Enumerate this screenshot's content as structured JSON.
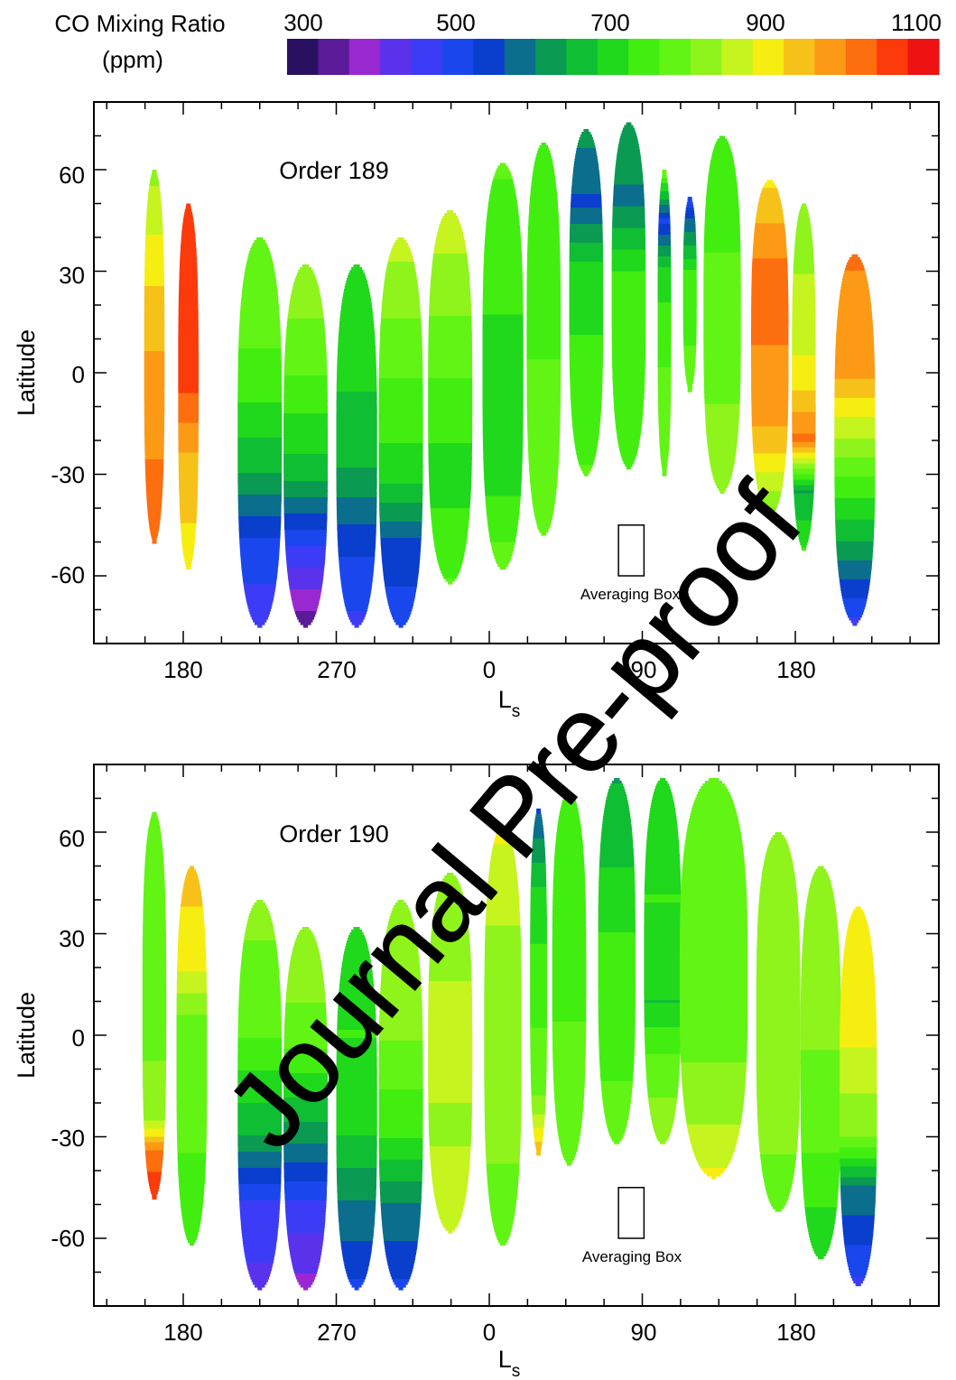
{
  "watermark": "Journal Pre-proof",
  "colorbar": {
    "title_line1": "CO Mixing Ratio",
    "title_line2": "(ppm)",
    "ticks": [
      "300",
      "500",
      "700",
      "900",
      "1100"
    ],
    "range": [
      300,
      1100
    ],
    "colors": [
      "#2a1060",
      "#5a1a9a",
      "#9a28d0",
      "#5a32ec",
      "#3c3cf6",
      "#1a46ee",
      "#0a3ecc",
      "#0a6e8c",
      "#0a9a52",
      "#10be34",
      "#20d81c",
      "#42ee10",
      "#62f414",
      "#8ef41c",
      "#c6f41e",
      "#f6ee10",
      "#f6c21a",
      "#fc9a16",
      "#fc6e0e",
      "#fc3a0a",
      "#ee1212"
    ]
  },
  "chart_data": [
    {
      "type": "heatmap",
      "panel_label": "Order 189",
      "xlabel": "L",
      "xlabel_sub": "s",
      "ylabel": "Latitude",
      "x_tick_labels": [
        "180",
        "270",
        "0",
        "90",
        "180"
      ],
      "y_tick_labels": [
        "60",
        "30",
        "0",
        "-30",
        "-60"
      ],
      "y_ticks": [
        60,
        30,
        0,
        -30,
        -60
      ],
      "ylim": [
        -80,
        80
      ],
      "xlim_ls_continuous": [
        138,
        398
      ],
      "annotation": "Averaging Box",
      "averaging_box": {
        "ls_min": 76,
        "ls_max": 91,
        "lat_min": -60,
        "lat_max": -45
      },
      "swaths": [
        {
          "ls": 163,
          "width": 12,
          "lat_min": -50,
          "lat_max": 60,
          "profile": [
            [
              60,
              820
            ],
            [
              30,
              900
            ],
            [
              0,
              960
            ],
            [
              -30,
              990
            ],
            [
              -50,
              1010
            ]
          ]
        },
        {
          "ls": 183,
          "width": 12,
          "lat_min": -58,
          "lat_max": 50,
          "profile": [
            [
              50,
              1060
            ],
            [
              20,
              1040
            ],
            [
              0,
              1050
            ],
            [
              -30,
              920
            ],
            [
              -58,
              900
            ]
          ]
        },
        {
          "ls": 225,
          "width": 26,
          "lat_min": -75,
          "lat_max": 40,
          "profile": [
            [
              40,
              790
            ],
            [
              0,
              750
            ],
            [
              -30,
              640
            ],
            [
              -50,
              520
            ],
            [
              -75,
              460
            ]
          ]
        },
        {
          "ls": 252,
          "width": 26,
          "lat_min": -75,
          "lat_max": 32,
          "profile": [
            [
              32,
              830
            ],
            [
              0,
              760
            ],
            [
              -30,
              660
            ],
            [
              -50,
              500
            ],
            [
              -75,
              350
            ]
          ]
        },
        {
          "ls": 282,
          "width": 24,
          "lat_min": -75,
          "lat_max": 32,
          "profile": [
            [
              32,
              690
            ],
            [
              0,
              690
            ],
            [
              -30,
              640
            ],
            [
              -50,
              540
            ],
            [
              -75,
              480
            ]
          ]
        },
        {
          "ls": 308,
          "width": 26,
          "lat_min": -75,
          "lat_max": 40,
          "profile": [
            [
              40,
              850
            ],
            [
              0,
              760
            ],
            [
              -30,
              700
            ],
            [
              -50,
              560
            ],
            [
              -75,
              500
            ]
          ]
        },
        {
          "ls": 337,
          "width": 26,
          "lat_min": -62,
          "lat_max": 48,
          "profile": [
            [
              48,
              860
            ],
            [
              0,
              760
            ],
            [
              -30,
              700
            ],
            [
              -62,
              760
            ]
          ]
        },
        {
          "ls": 368,
          "width": 24,
          "lat_min": -58,
          "lat_max": 62,
          "profile": [
            [
              62,
              760
            ],
            [
              30,
              740
            ],
            [
              0,
              690
            ],
            [
              -30,
              700
            ],
            [
              -58,
              780
            ]
          ]
        },
        {
          "ls": 392,
          "width": 20,
          "lat_min": -48,
          "lat_max": 68,
          "profile": [
            [
              68,
              720
            ],
            [
              30,
              740
            ],
            [
              0,
              760
            ],
            [
              -48,
              770
            ]
          ]
        },
        {
          "ls": 417,
          "width": 20,
          "lat_min": -30,
          "lat_max": 72,
          "profile": [
            [
              72,
              620
            ],
            [
              50,
              560
            ],
            [
              30,
              700
            ],
            [
              0,
              730
            ],
            [
              -30,
              760
            ]
          ]
        },
        {
          "ls": 442,
          "width": 20,
          "lat_min": -28,
          "lat_max": 74,
          "profile": [
            [
              74,
              620
            ],
            [
              50,
              600
            ],
            [
              30,
              720
            ],
            [
              0,
              740
            ],
            [
              -28,
              740
            ]
          ]
        },
        {
          "ls": 463,
          "width": 8,
          "lat_min": -30,
          "lat_max": 60,
          "profile": [
            [
              60,
              800
            ],
            [
              45,
              520
            ],
            [
              30,
              700
            ],
            [
              0,
              760
            ],
            [
              -30,
              780
            ]
          ]
        },
        {
          "ls": 478,
          "width": 8,
          "lat_min": -5,
          "lat_max": 52,
          "profile": [
            [
              52,
              500
            ],
            [
              30,
              720
            ],
            [
              -5,
              780
            ]
          ]
        },
        {
          "ls": 497,
          "width": 22,
          "lat_min": -35,
          "lat_max": 70,
          "profile": [
            [
              70,
              740
            ],
            [
              30,
              760
            ],
            [
              0,
              790
            ],
            [
              -35,
              810
            ]
          ]
        },
        {
          "ls": 525,
          "width": 22,
          "lat_min": -42,
          "lat_max": 57,
          "profile": [
            [
              57,
              900
            ],
            [
              30,
              1000
            ],
            [
              0,
              980
            ],
            [
              -20,
              940
            ],
            [
              -42,
              780
            ]
          ]
        },
        {
          "ls": 545,
          "width": 14,
          "lat_min": -52,
          "lat_max": 50,
          "profile": [
            [
              50,
              800
            ],
            [
              0,
              880
            ],
            [
              -20,
              1000
            ],
            [
              -35,
              640
            ],
            [
              -52,
              720
            ]
          ]
        },
        {
          "ls": 575,
          "width": 24,
          "lat_min": -74,
          "lat_max": 35,
          "profile": [
            [
              35,
              990
            ],
            [
              0,
              960
            ],
            [
              -30,
              760
            ],
            [
              -50,
              640
            ],
            [
              -74,
              480
            ]
          ]
        }
      ]
    },
    {
      "type": "heatmap",
      "panel_label": "Order 190",
      "xlabel": "L",
      "xlabel_sub": "s",
      "ylabel": "Latitude",
      "x_tick_labels": [
        "180",
        "270",
        "0",
        "90",
        "180"
      ],
      "y_tick_labels": [
        "60",
        "30",
        "0",
        "-30",
        "-60"
      ],
      "y_ticks": [
        60,
        30,
        0,
        -30,
        -60
      ],
      "ylim": [
        -80,
        80
      ],
      "xlim_ls_continuous": [
        138,
        398
      ],
      "annotation": "Averaging Box",
      "averaging_box": {
        "ls_min": 76,
        "ls_max": 91,
        "lat_min": -60,
        "lat_max": -45
      },
      "swaths": [
        {
          "ls": 163,
          "width": 14,
          "lat_min": -48,
          "lat_max": 66,
          "profile": [
            [
              66,
              760
            ],
            [
              30,
              760
            ],
            [
              0,
              780
            ],
            [
              -25,
              830
            ],
            [
              -35,
              1000
            ],
            [
              -48,
              1060
            ]
          ]
        },
        {
          "ls": 185,
          "width": 18,
          "lat_min": -62,
          "lat_max": 50,
          "profile": [
            [
              50,
              930
            ],
            [
              20,
              880
            ],
            [
              0,
              760
            ],
            [
              -30,
              760
            ],
            [
              -62,
              740
            ]
          ]
        },
        {
          "ls": 225,
          "width": 26,
          "lat_min": -75,
          "lat_max": 40,
          "profile": [
            [
              40,
              810
            ],
            [
              0,
              760
            ],
            [
              -30,
              640
            ],
            [
              -50,
              480
            ],
            [
              -75,
              440
            ]
          ]
        },
        {
          "ls": 252,
          "width": 26,
          "lat_min": -75,
          "lat_max": 32,
          "profile": [
            [
              32,
              830
            ],
            [
              0,
              780
            ],
            [
              -30,
              620
            ],
            [
              -50,
              480
            ],
            [
              -75,
              400
            ]
          ]
        },
        {
          "ls": 282,
          "width": 24,
          "lat_min": -75,
          "lat_max": 32,
          "profile": [
            [
              32,
              700
            ],
            [
              0,
              720
            ],
            [
              -30,
              680
            ],
            [
              -50,
              600
            ],
            [
              -75,
              520
            ]
          ]
        },
        {
          "ls": 308,
          "width": 26,
          "lat_min": -75,
          "lat_max": 40,
          "profile": [
            [
              40,
              830
            ],
            [
              0,
              800
            ],
            [
              -30,
              720
            ],
            [
              -50,
              600
            ],
            [
              -75,
              520
            ]
          ]
        },
        {
          "ls": 337,
          "width": 26,
          "lat_min": -58,
          "lat_max": 48,
          "profile": [
            [
              48,
              820
            ],
            [
              0,
              840
            ],
            [
              -30,
              830
            ],
            [
              -58,
              860
            ]
          ]
        },
        {
          "ls": 368,
          "width": 22,
          "lat_min": -62,
          "lat_max": 62,
          "profile": [
            [
              62,
              880
            ],
            [
              30,
              830
            ],
            [
              0,
              830
            ],
            [
              -30,
              800
            ],
            [
              -62,
              780
            ]
          ]
        },
        {
          "ls": 389,
          "width": 10,
          "lat_min": -35,
          "lat_max": 67,
          "profile": [
            [
              67,
              560
            ],
            [
              40,
              700
            ],
            [
              0,
              760
            ],
            [
              -20,
              800
            ],
            [
              -35,
              940
            ]
          ]
        },
        {
          "ls": 407,
          "width": 20,
          "lat_min": -38,
          "lat_max": 72,
          "profile": [
            [
              72,
              720
            ],
            [
              30,
              740
            ],
            [
              0,
              760
            ],
            [
              -38,
              780
            ]
          ]
        },
        {
          "ls": 435,
          "width": 22,
          "lat_min": -32,
          "lat_max": 76,
          "profile": [
            [
              76,
              640
            ],
            [
              50,
              680
            ],
            [
              30,
              720
            ],
            [
              0,
              740
            ],
            [
              -32,
              780
            ]
          ]
        },
        {
          "ls": 462,
          "width": 22,
          "lat_min": -32,
          "lat_max": 76,
          "profile": [
            [
              76,
              700
            ],
            [
              40,
              720
            ],
            [
              10,
              680
            ],
            [
              -10,
              780
            ],
            [
              -32,
              820
            ]
          ]
        },
        {
          "ls": 492,
          "width": 40,
          "lat_min": -42,
          "lat_max": 76,
          "profile": [
            [
              76,
              760
            ],
            [
              40,
              760
            ],
            [
              0,
              780
            ],
            [
              -25,
              830
            ],
            [
              -42,
              880
            ]
          ]
        },
        {
          "ls": 530,
          "width": 26,
          "lat_min": -52,
          "lat_max": 60,
          "profile": [
            [
              60,
              820
            ],
            [
              30,
              820
            ],
            [
              0,
              800
            ],
            [
              -30,
              800
            ],
            [
              -52,
              780
            ]
          ]
        },
        {
          "ls": 555,
          "width": 24,
          "lat_min": -66,
          "lat_max": 50,
          "profile": [
            [
              50,
              800
            ],
            [
              0,
              800
            ],
            [
              -30,
              770
            ],
            [
              -50,
              720
            ],
            [
              -66,
              700
            ]
          ]
        },
        {
          "ls": 577,
          "width": 22,
          "lat_min": -74,
          "lat_max": 38,
          "profile": [
            [
              38,
              900
            ],
            [
              0,
              880
            ],
            [
              -30,
              800
            ],
            [
              -45,
              600
            ],
            [
              -74,
              480
            ]
          ]
        }
      ]
    }
  ]
}
